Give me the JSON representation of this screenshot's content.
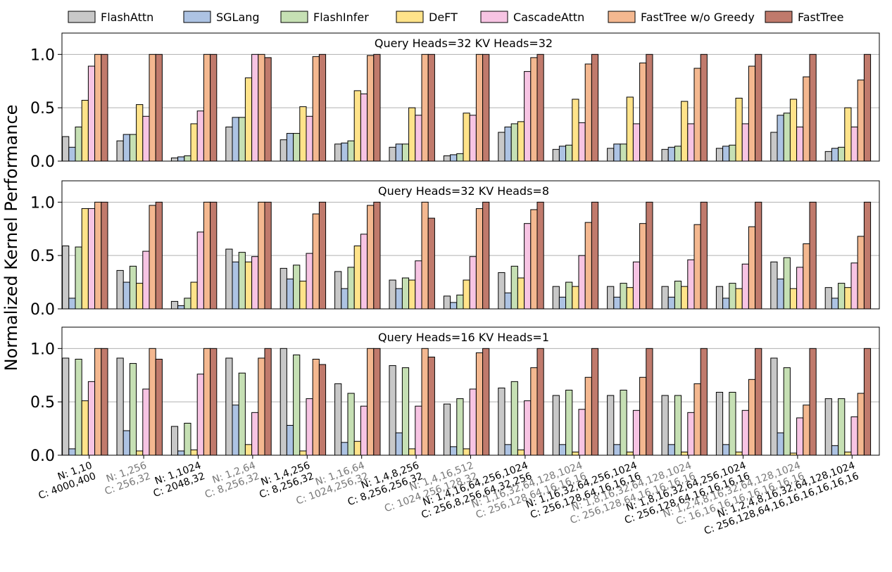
{
  "chart_data": {
    "type": "bar",
    "ylabel": "Normalized Kernel Performance",
    "legend_position": "top",
    "grid": "horizontal",
    "ylim": [
      0,
      1.2
    ],
    "yticks": [
      "0.0",
      "0.5",
      "1.0"
    ],
    "series": [
      {
        "name": "FlashAttn",
        "color": "#c8c8c8"
      },
      {
        "name": "SGLang",
        "color": "#adc3e3"
      },
      {
        "name": "FlashInfer",
        "color": "#c6e0b4"
      },
      {
        "name": "DeFT",
        "color": "#ffe38a"
      },
      {
        "name": "CascadeAttn",
        "color": "#f7c4e3"
      },
      {
        "name": "FastTree w/o Greedy",
        "color": "#f4b890"
      },
      {
        "name": "FastTree",
        "color": "#c07a6c"
      }
    ],
    "categories": [
      {
        "n": "N: 1,10",
        "c": "C: 4000,400",
        "muted": false
      },
      {
        "n": "N: 1,256",
        "c": "C: 256,32",
        "muted": true
      },
      {
        "n": "N: 1,1024",
        "c": "C: 2048,32",
        "muted": false
      },
      {
        "n": "N: 1,2,64",
        "c": "C: 8,256,32",
        "muted": true
      },
      {
        "n": "N: 1,4,256",
        "c": "C: 8,256,32",
        "muted": false
      },
      {
        "n": "N: 1,16,64",
        "c": "C: 1024,256,32",
        "muted": true
      },
      {
        "n": "N: 1,4,8,256",
        "c": "C: 8,256,256,32",
        "muted": false
      },
      {
        "n": "N: 1,4,16,512",
        "c": "C: 1024,256,128,32",
        "muted": true
      },
      {
        "n": "N: 1,4,16,64,256,1024",
        "c": "C: 256,8,256,64,32,256",
        "muted": false
      },
      {
        "n": "N: 1,16,32,64,128,1024",
        "c": "C: 256,128,64,16,16,16",
        "muted": true
      },
      {
        "n": "N: 1,16,32,64,256,1024",
        "c": "C: 256,128,64,16,16,16",
        "muted": false
      },
      {
        "n": "N: 1,8,16,32,64,128,1024",
        "c": "C: 256,128,64,16,16,16,16",
        "muted": true
      },
      {
        "n": "N: 1,8,16,32,64,256,1024",
        "c": "C: 256,128,64,16,16,16,16",
        "muted": false
      },
      {
        "n": "N: 1,2,4,8,16,32,64,128,1024",
        "c": "C: 16,16,16,16,16,16,16,16",
        "muted": true
      },
      {
        "n": "N: 1,2,4,8,16,32,64,128,1024",
        "c": "C: 256,128,64,16,16,16,16,16,16",
        "muted": false
      }
    ],
    "panels": [
      {
        "title": "Query Heads=32  KV Heads=32",
        "values": [
          [
            0.23,
            0.13,
            0.32,
            0.57,
            0.89,
            1.0,
            1.0
          ],
          [
            0.19,
            0.25,
            0.25,
            0.53,
            0.42,
            1.0,
            1.0
          ],
          [
            0.03,
            0.04,
            0.05,
            0.35,
            0.47,
            1.0,
            1.0
          ],
          [
            0.32,
            0.41,
            0.41,
            0.78,
            1.0,
            1.0,
            0.97
          ],
          [
            0.2,
            0.26,
            0.26,
            0.51,
            0.42,
            0.98,
            1.0
          ],
          [
            0.16,
            0.17,
            0.19,
            0.66,
            0.63,
            0.99,
            1.0
          ],
          [
            0.13,
            0.16,
            0.16,
            0.5,
            0.43,
            1.0,
            1.0
          ],
          [
            0.05,
            0.06,
            0.07,
            0.45,
            0.43,
            1.0,
            1.0
          ],
          [
            0.27,
            0.32,
            0.35,
            0.37,
            0.84,
            0.97,
            1.0
          ],
          [
            0.11,
            0.14,
            0.15,
            0.58,
            0.36,
            0.91,
            1.0
          ],
          [
            0.12,
            0.16,
            0.16,
            0.6,
            0.35,
            0.92,
            1.0
          ],
          [
            0.11,
            0.13,
            0.14,
            0.56,
            0.35,
            0.87,
            1.0
          ],
          [
            0.12,
            0.14,
            0.15,
            0.59,
            0.35,
            0.89,
            1.0
          ],
          [
            0.27,
            0.43,
            0.45,
            0.58,
            0.32,
            0.79,
            1.0
          ],
          [
            0.09,
            0.12,
            0.13,
            0.5,
            0.32,
            0.76,
            1.0
          ]
        ]
      },
      {
        "title": "Query Heads=32  KV Heads=8",
        "values": [
          [
            0.59,
            0.1,
            0.58,
            0.94,
            0.94,
            1.0,
            1.0
          ],
          [
            0.36,
            0.25,
            0.4,
            0.24,
            0.54,
            0.97,
            1.0
          ],
          [
            0.07,
            0.03,
            0.1,
            0.25,
            0.72,
            1.0,
            1.0
          ],
          [
            0.56,
            0.44,
            0.53,
            0.44,
            0.49,
            1.0,
            1.0
          ],
          [
            0.38,
            0.28,
            0.41,
            0.26,
            0.52,
            0.89,
            1.0
          ],
          [
            0.35,
            0.19,
            0.39,
            0.59,
            0.7,
            0.97,
            1.0
          ],
          [
            0.27,
            0.19,
            0.29,
            0.27,
            0.45,
            1.0,
            0.85
          ],
          [
            0.12,
            0.06,
            0.13,
            0.27,
            0.49,
            0.94,
            1.0
          ],
          [
            0.34,
            0.15,
            0.4,
            0.29,
            0.8,
            0.93,
            1.0
          ],
          [
            0.21,
            0.11,
            0.25,
            0.21,
            0.5,
            0.81,
            1.0
          ],
          [
            0.21,
            0.11,
            0.24,
            0.2,
            0.44,
            0.8,
            1.0
          ],
          [
            0.21,
            0.11,
            0.26,
            0.21,
            0.46,
            0.79,
            1.0
          ],
          [
            0.21,
            0.1,
            0.24,
            0.19,
            0.42,
            0.77,
            1.0
          ],
          [
            0.44,
            0.28,
            0.48,
            0.19,
            0.39,
            0.61,
            1.0
          ],
          [
            0.2,
            0.1,
            0.24,
            0.2,
            0.43,
            0.68,
            1.0
          ]
        ]
      },
      {
        "title": "Query Heads=16  KV Heads=1",
        "values": [
          [
            0.91,
            0.06,
            0.9,
            0.51,
            0.69,
            1.0,
            1.0
          ],
          [
            0.91,
            0.23,
            0.86,
            0.04,
            0.62,
            1.0,
            0.9
          ],
          [
            0.27,
            0.04,
            0.3,
            0.05,
            0.76,
            1.0,
            1.0
          ],
          [
            0.91,
            0.47,
            0.77,
            0.1,
            0.4,
            0.91,
            1.0
          ],
          [
            1.0,
            0.28,
            0.94,
            0.04,
            0.53,
            0.9,
            0.85
          ],
          [
            0.67,
            0.12,
            0.58,
            0.13,
            0.46,
            1.0,
            1.0
          ],
          [
            0.84,
            0.21,
            0.82,
            0.06,
            0.46,
            1.0,
            0.92
          ],
          [
            0.48,
            0.08,
            0.53,
            0.06,
            0.62,
            0.96,
            1.0
          ],
          [
            0.63,
            0.1,
            0.69,
            0.05,
            0.51,
            0.82,
            1.0
          ],
          [
            0.56,
            0.1,
            0.61,
            0.03,
            0.43,
            0.73,
            1.0
          ],
          [
            0.56,
            0.1,
            0.61,
            0.03,
            0.42,
            0.73,
            1.0
          ],
          [
            0.56,
            0.1,
            0.56,
            0.03,
            0.4,
            0.67,
            1.0
          ],
          [
            0.59,
            0.1,
            0.59,
            0.03,
            0.42,
            0.71,
            1.0
          ],
          [
            0.91,
            0.21,
            0.82,
            0.02,
            0.35,
            0.47,
            1.0
          ],
          [
            0.53,
            0.09,
            0.53,
            0.03,
            0.36,
            0.58,
            1.0
          ]
        ]
      }
    ]
  }
}
